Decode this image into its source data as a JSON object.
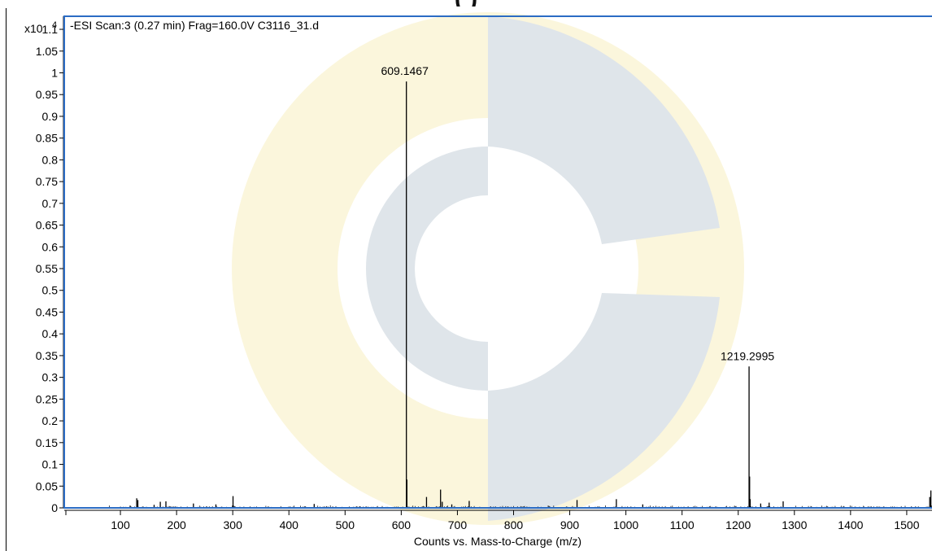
{
  "header_text": "(                )",
  "chart_data": {
    "type": "bar",
    "title": "-ESI Scan:3 (0.27 min) Frag=160.0V C3116_31.d",
    "y_multiplier_label": "x10",
    "y_multiplier_exp": "4",
    "xlabel": "Counts vs. Mass-to-Charge (m/z)",
    "xlim": [
      0,
      1545
    ],
    "ylim": [
      0,
      1.13
    ],
    "x_ticks": [
      100,
      200,
      300,
      400,
      500,
      600,
      700,
      800,
      900,
      1000,
      1100,
      1200,
      1300,
      1400,
      1500
    ],
    "y_ticks": [
      "0",
      "0.05",
      "0.1",
      "0.15",
      "0.2",
      "0.25",
      "0.3",
      "0.35",
      "0.4",
      "0.45",
      "0.5",
      "0.55",
      "0.6",
      "0.65",
      "0.7",
      "0.75",
      "0.8",
      "0.85",
      "0.9",
      "0.95",
      "1",
      "1.05",
      "1.1"
    ],
    "frame_color": "#2b6cc4",
    "watermark_colors": [
      "#dfe5ea",
      "#fbf6dc"
    ],
    "peaks": [
      {
        "mz": 609.1467,
        "intensity": 0.98,
        "label": "609.1467"
      },
      {
        "mz": 1219.2995,
        "intensity": 0.325,
        "label": "1219.2995"
      },
      {
        "mz": 610.1,
        "intensity": 0.065
      },
      {
        "mz": 1220.3,
        "intensity": 0.072
      },
      {
        "mz": 1221.3,
        "intensity": 0.02
      },
      {
        "mz": 670.0,
        "intensity": 0.042
      },
      {
        "mz": 645.0,
        "intensity": 0.025
      },
      {
        "mz": 300.5,
        "intensity": 0.027
      },
      {
        "mz": 129.0,
        "intensity": 0.022
      },
      {
        "mz": 131.0,
        "intensity": 0.018
      },
      {
        "mz": 171.0,
        "intensity": 0.014
      },
      {
        "mz": 181.0,
        "intensity": 0.015
      },
      {
        "mz": 673.0,
        "intensity": 0.014
      },
      {
        "mz": 721.0,
        "intensity": 0.016
      },
      {
        "mz": 913.0,
        "intensity": 0.018
      },
      {
        "mz": 983.0,
        "intensity": 0.02
      },
      {
        "mz": 1280.0,
        "intensity": 0.015
      },
      {
        "mz": 1255.0,
        "intensity": 0.012
      },
      {
        "mz": 1240.0,
        "intensity": 0.01
      },
      {
        "mz": 1543.0,
        "intensity": 0.04
      },
      {
        "mz": 1541.0,
        "intensity": 0.025
      },
      {
        "mz": 690.0,
        "intensity": 0.008
      },
      {
        "mz": 230.0,
        "intensity": 0.01
      },
      {
        "mz": 270.0,
        "intensity": 0.008
      },
      {
        "mz": 445.0,
        "intensity": 0.009
      },
      {
        "mz": 160.0,
        "intensity": 0.007
      },
      {
        "mz": 1030.0,
        "intensity": 0.008
      }
    ]
  }
}
